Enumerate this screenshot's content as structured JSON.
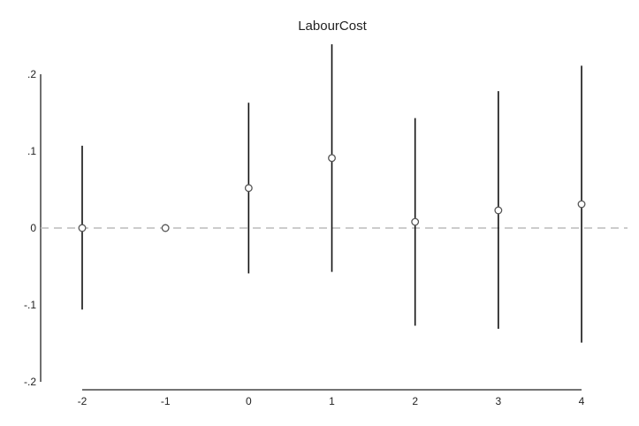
{
  "chart_data": {
    "type": "scatter",
    "title": "LabourCost",
    "xlabel": "",
    "ylabel": "",
    "x": [
      -2,
      -1,
      0,
      1,
      2,
      3,
      4
    ],
    "series": [
      {
        "values": [
          0.0,
          0.0,
          0.052,
          0.091,
          0.008,
          0.023,
          0.031
        ],
        "ci_low": [
          -0.106,
          null,
          -0.059,
          -0.057,
          -0.127,
          -0.131,
          -0.149
        ],
        "ci_high": [
          0.107,
          null,
          0.163,
          0.239,
          0.143,
          0.178,
          0.211
        ]
      }
    ],
    "xticks": [
      "-2",
      "-1",
      "0",
      "1",
      "2",
      "3",
      "4"
    ],
    "yticks": [
      {
        "value": 0.2,
        "label": ".2"
      },
      {
        "value": 0.1,
        "label": ".1"
      },
      {
        "value": 0.0,
        "label": "0"
      },
      {
        "value": -0.1,
        "label": "-.1"
      },
      {
        "value": -0.2,
        "label": "-.2"
      }
    ],
    "xlim": [
      -2.5,
      4.5
    ],
    "ylim": [
      -0.2,
      0.2
    ],
    "reference_line": {
      "y": 0,
      "style": "dashed",
      "color": "#bbbbbb"
    },
    "grid": false,
    "colors": {
      "marker": "#555555",
      "ci": "#111111",
      "axis": "#222222"
    }
  }
}
